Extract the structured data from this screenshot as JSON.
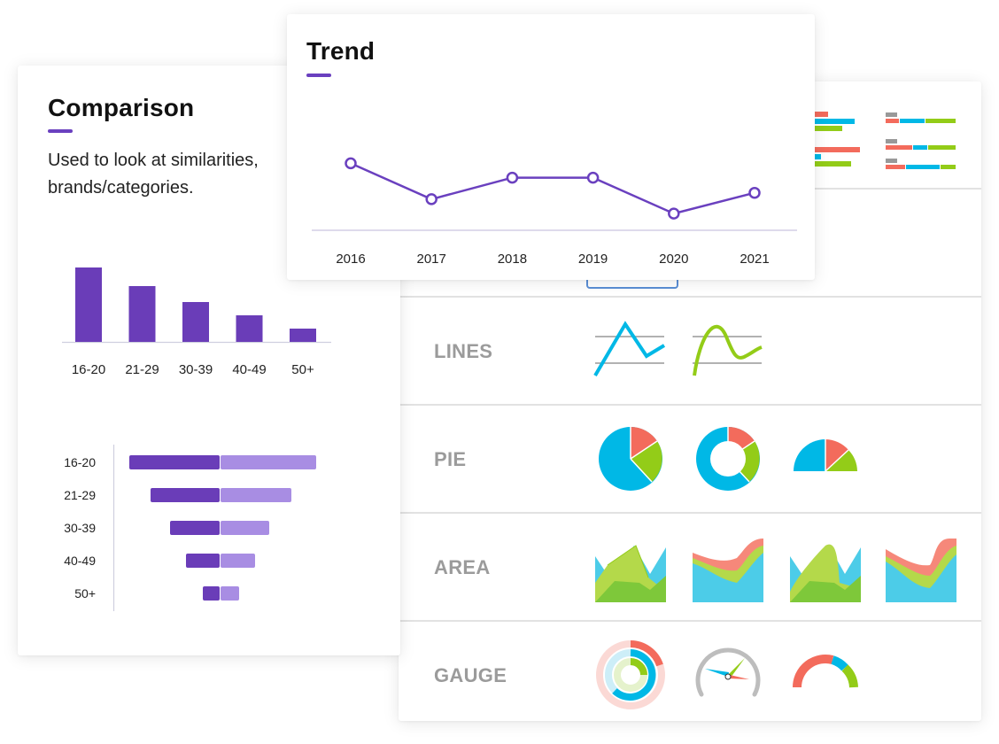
{
  "comparison": {
    "title": "Comparison",
    "description": "Used to look at similarities,\nbrands/categories."
  },
  "trend": {
    "title": "Trend"
  },
  "catalog": {
    "rows": [
      {
        "label": "LINES"
      },
      {
        "label": "PIE"
      },
      {
        "label": "AREA"
      },
      {
        "label": "GAUGE"
      }
    ]
  },
  "colors": {
    "accent": "#6a40bf",
    "bar_dark": "#6a3db8",
    "bar_light": "#a88de3",
    "blue": "#00b8e6",
    "green": "#93cc18",
    "coral": "#f36b5c",
    "gray_label": "#9b9b9b"
  },
  "chart_data": [
    {
      "type": "line",
      "title": "Trend",
      "x": [
        "2016",
        "2017",
        "2018",
        "2019",
        "2020",
        "2021"
      ],
      "series": [
        {
          "values": [
            74,
            29,
            56,
            56,
            11,
            37
          ]
        }
      ],
      "ylim": [
        0,
        100
      ],
      "grid": false
    },
    {
      "type": "bar",
      "categories": [
        "16-20",
        "21-29",
        "30-39",
        "40-49",
        "50+"
      ],
      "values": [
        84,
        63,
        45,
        30,
        15
      ],
      "ylim": [
        0,
        100
      ]
    },
    {
      "type": "bar",
      "orientation": "horizontal",
      "categories": [
        "16-20",
        "21-29",
        "30-39",
        "40-49",
        "50+"
      ],
      "series": [
        {
          "values": [
            102,
            78,
            56,
            38,
            19
          ]
        },
        {
          "values": [
            108,
            80,
            55,
            39,
            21
          ]
        }
      ]
    }
  ]
}
